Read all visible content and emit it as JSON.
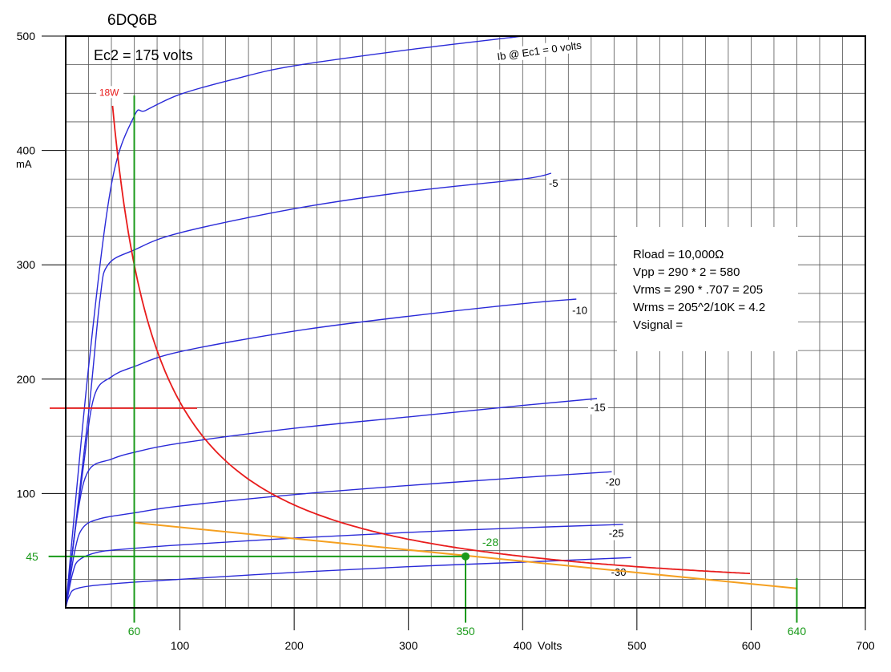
{
  "chart_data": {
    "type": "line",
    "title": "6DQ6B",
    "subtitle": "Ec2 = 175 volts",
    "xlabel": "Volts",
    "ylabel": "mA",
    "xlim": [
      0,
      700
    ],
    "ylim": [
      0,
      500
    ],
    "grid": true,
    "x_ticks": [
      {
        "value": 100,
        "label": "100"
      },
      {
        "value": 200,
        "label": "200"
      },
      {
        "value": 300,
        "label": "300"
      },
      {
        "value": 400,
        "label": "400"
      },
      {
        "value": 500,
        "label": "500"
      },
      {
        "value": 600,
        "label": "600"
      },
      {
        "value": 700,
        "label": "700"
      }
    ],
    "y_ticks": [
      {
        "value": 100,
        "label": "100"
      },
      {
        "value": 200,
        "label": "200"
      },
      {
        "value": 300,
        "label": "300"
      },
      {
        "value": 400,
        "label": "400"
      },
      {
        "value": 500,
        "label": "500"
      }
    ],
    "colors": {
      "plate_curves": "#2a2ad8",
      "dissipation": "#e81c1c",
      "load_line": "#f5a020",
      "markers": "#1a9a1a",
      "frame": "#000000",
      "grid": "#555555"
    },
    "series": [
      {
        "label": "Ib @ Ec1 = 0 volts",
        "label_x": 415,
        "label_y": 484,
        "label_angle": -8,
        "points": [
          [
            0,
            0
          ],
          [
            20,
            210
          ],
          [
            40,
            370
          ],
          [
            60,
            430
          ],
          [
            70,
            435
          ],
          [
            100,
            449
          ],
          [
            150,
            463
          ],
          [
            200,
            474
          ],
          [
            300,
            488
          ],
          [
            400,
            500
          ]
        ]
      },
      {
        "label": "-5",
        "label_x": 427,
        "label_y": 368,
        "points": [
          [
            0,
            0
          ],
          [
            20,
            170
          ],
          [
            30,
            270
          ],
          [
            37,
            300
          ],
          [
            60,
            313
          ],
          [
            100,
            328
          ],
          [
            200,
            349
          ],
          [
            300,
            364
          ],
          [
            400,
            375
          ],
          [
            425,
            380
          ]
        ]
      },
      {
        "label": "-10",
        "label_x": 450,
        "label_y": 257,
        "points": [
          [
            0,
            0
          ],
          [
            15,
            120
          ],
          [
            25,
            185
          ],
          [
            40,
            202
          ],
          [
            60,
            211
          ],
          [
            100,
            224
          ],
          [
            200,
            242
          ],
          [
            300,
            255
          ],
          [
            400,
            266
          ],
          [
            447,
            270
          ]
        ]
      },
      {
        "label": "-15",
        "label_x": 466,
        "label_y": 172,
        "points": [
          [
            0,
            0
          ],
          [
            10,
            80
          ],
          [
            20,
            120
          ],
          [
            40,
            130
          ],
          [
            60,
            136
          ],
          [
            100,
            144
          ],
          [
            200,
            157
          ],
          [
            300,
            167
          ],
          [
            400,
            177
          ],
          [
            465,
            183
          ]
        ]
      },
      {
        "label": "-20",
        "label_x": 479,
        "label_y": 107,
        "points": [
          [
            0,
            0
          ],
          [
            8,
            50
          ],
          [
            15,
            70
          ],
          [
            30,
            78
          ],
          [
            60,
            83
          ],
          [
            100,
            89
          ],
          [
            200,
            99
          ],
          [
            300,
            107
          ],
          [
            400,
            114
          ],
          [
            478,
            119
          ]
        ]
      },
      {
        "label": "-25",
        "label_x": 482,
        "label_y": 62,
        "points": [
          [
            0,
            0
          ],
          [
            6,
            30
          ],
          [
            12,
            42
          ],
          [
            30,
            49
          ],
          [
            60,
            52
          ],
          [
            100,
            55
          ],
          [
            200,
            61
          ],
          [
            300,
            66
          ],
          [
            400,
            70
          ],
          [
            488,
            73
          ]
        ]
      },
      {
        "label": "-30",
        "label_x": 484,
        "label_y": 28,
        "points": [
          [
            0,
            0
          ],
          [
            3,
            10
          ],
          [
            10,
            17
          ],
          [
            40,
            21
          ],
          [
            100,
            25
          ],
          [
            200,
            31
          ],
          [
            300,
            36
          ],
          [
            400,
            40
          ],
          [
            495,
            44
          ]
        ]
      }
    ],
    "dissipation_curve": {
      "label": "18W",
      "label_x": 38,
      "label_y": 450,
      "watts": 18,
      "x_from": 41,
      "x_to": 600
    },
    "load_line": {
      "points": [
        [
          60,
          74.5
        ],
        [
          640,
          17
        ]
      ]
    },
    "bias_line": {
      "points": [
        [
          -14,
          174.6
        ],
        [
          115,
          174.6
        ]
      ]
    },
    "bias_point": {
      "x": 350,
      "y": 45,
      "label": "-28"
    },
    "markers": [
      {
        "x": 60,
        "y_from": -13,
        "y_to": 448,
        "label": "60"
      },
      {
        "x": 350,
        "y_from": -13,
        "y_to": 45,
        "label": "350"
      },
      {
        "x": 640,
        "y_from": -13,
        "y_to": 26,
        "label": "640"
      }
    ],
    "h_marker": {
      "y": 45,
      "x_from": -15,
      "x_to": 350,
      "label": "45"
    },
    "annotation_box": {
      "lines": [
        "Rload = 10,000Ω",
        "Vpp = 290 * 2 = 580",
        "Vrms = 290 * .707 = 205",
        "Wrms = 205^2/10K = 4.2",
        "Vsignal ="
      ]
    }
  }
}
